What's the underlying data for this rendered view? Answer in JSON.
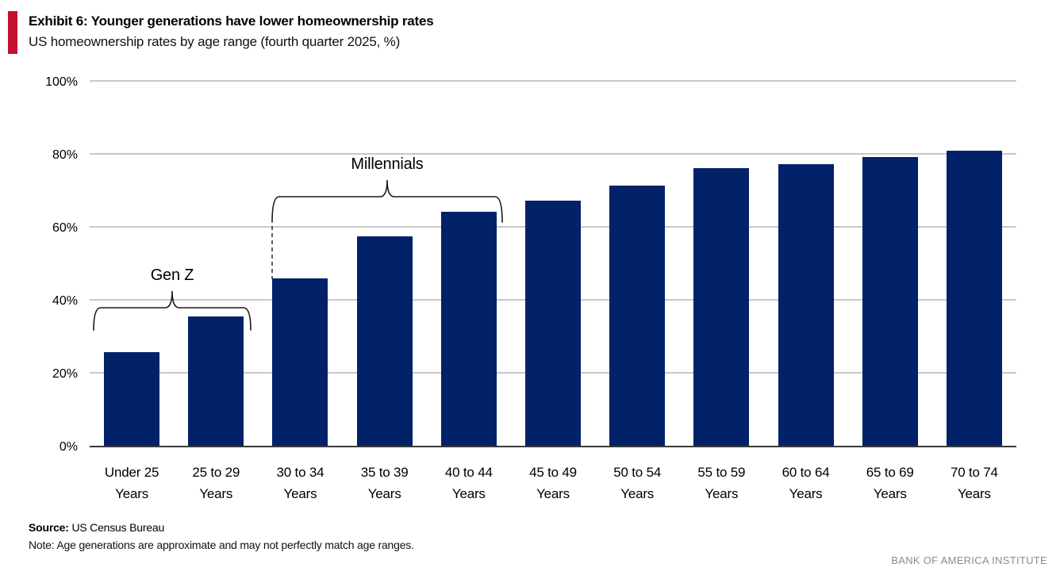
{
  "header": {
    "exhibit_title": "Exhibit 6: Younger generations have lower homeownership rates",
    "subtitle": "US homeownership rates by age range (fourth quarter 2025, %)",
    "accent_color": "#C41230"
  },
  "chart_data": {
    "type": "bar",
    "title": "Exhibit 6: Younger generations have lower homeownership rates",
    "subtitle": "US homeownership rates by age range (fourth quarter 2025, %)",
    "categories": [
      "Under 25 Years",
      "25 to 29 Years",
      "30 to 34 Years",
      "35 to 39 Years",
      "40 to 44 Years",
      "45 to 49 Years",
      "50 to 54 Years",
      "55 to 59 Years",
      "60 to 64 Years",
      "65 to 69 Years",
      "70 to 74 Years"
    ],
    "values": [
      25.7,
      35.4,
      45.9,
      57.3,
      64.2,
      67.2,
      71.4,
      76.0,
      77.1,
      79.2,
      80.9
    ],
    "xlabel": "",
    "ylabel": "",
    "ylim": [
      0,
      100
    ],
    "yticks": [
      0,
      20,
      40,
      60,
      80,
      100
    ],
    "ytick_suffix": "%",
    "grid": true,
    "legend": false,
    "bar_color": "#012169",
    "gridline_color": "#c8c8c8",
    "annotations": [
      {
        "label": "Gen Z",
        "from_category": "Under 25 Years",
        "to_category": "25 to 29 Years"
      },
      {
        "label": "Millennials",
        "from_category": "30 to 34 Years",
        "to_category": "40 to 44 Years"
      }
    ]
  },
  "footer": {
    "source_label": "Source:",
    "source_text": "US Census Bureau",
    "note": "Note: Age generations are approximate and may not perfectly match age ranges.",
    "brand": "BANK OF AMERICA INSTITUTE"
  }
}
